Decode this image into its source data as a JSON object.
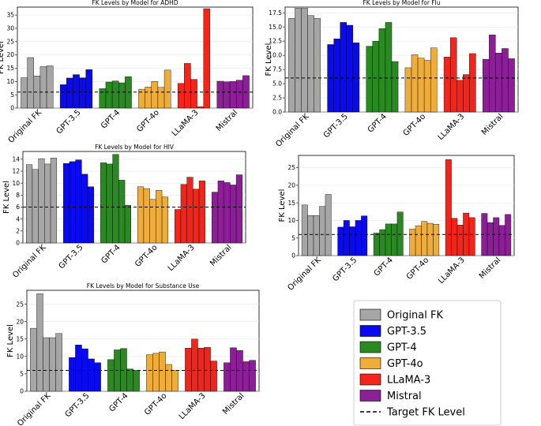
{
  "figure": {
    "target_label": "Target FK Level",
    "target_value": 6
  },
  "legend": {
    "entries": [
      {
        "name": "Original FK",
        "color": "#a6a6a6"
      },
      {
        "name": "GPT-3.5",
        "color": "#0a0aee"
      },
      {
        "name": "GPT-4",
        "color": "#2a8a22"
      },
      {
        "name": "GPT-4o",
        "color": "#eeac3b"
      },
      {
        "name": "LLaMA-3",
        "color": "#f3251b"
      },
      {
        "name": "Mistral",
        "color": "#8b1f95"
      },
      {
        "name": "Target FK Level",
        "style": "dashed-line"
      }
    ]
  },
  "chart_data": [
    {
      "type": "bar",
      "title": "FK Levels by Model for ADHD",
      "xlabel": "",
      "ylabel": "FK Level",
      "ylim": [
        0,
        38
      ],
      "yticks": [
        0,
        5,
        10,
        15,
        20,
        25,
        30,
        35
      ],
      "target": 6,
      "categories": [
        "Original FK",
        "GPT-3.5",
        "GPT-4",
        "GPT-4o",
        "LLaMA-3",
        "Mistral"
      ],
      "groups": [
        {
          "name": "Original FK",
          "color": "#a6a6a6",
          "values": [
            11.4,
            19.0,
            12.1,
            15.6,
            15.9
          ]
        },
        {
          "name": "GPT-3.5",
          "color": "#0a0aee",
          "values": [
            8.8,
            11.3,
            12.6,
            11.4,
            14.5
          ]
        },
        {
          "name": "GPT-4",
          "color": "#2a8a22",
          "values": [
            7.3,
            9.8,
            10.2,
            9.5,
            11.8
          ]
        },
        {
          "name": "GPT-4o",
          "color": "#eeac3b",
          "values": [
            7.1,
            7.9,
            10.0,
            7.8,
            14.3
          ]
        },
        {
          "name": "LLaMA-3",
          "color": "#f3251b",
          "values": [
            9.3,
            16.8,
            10.8,
            0.5,
            37.4
          ]
        },
        {
          "name": "Mistral",
          "color": "#8b1f95",
          "values": [
            10.1,
            9.9,
            10.0,
            10.5,
            12.2
          ]
        }
      ]
    },
    {
      "type": "bar",
      "title": "FK Levels by Model for Flu",
      "xlabel": "",
      "ylabel": "FK Level",
      "ylim": [
        0,
        18.5
      ],
      "yticks": [
        0.0,
        2.5,
        5.0,
        7.5,
        10.0,
        12.5,
        15.0,
        17.5
      ],
      "target": 6,
      "categories": [
        "Original FK",
        "GPT-3.5",
        "GPT-4",
        "GPT-4o",
        "LLaMA-3",
        "Mistral"
      ],
      "groups": [
        {
          "name": "Original FK",
          "color": "#a6a6a6",
          "values": [
            16.5,
            18.3,
            18.3,
            17.0,
            16.5
          ]
        },
        {
          "name": "GPT-3.5",
          "color": "#0a0aee",
          "values": [
            11.9,
            12.9,
            15.8,
            15.3,
            12.2
          ]
        },
        {
          "name": "GPT-4",
          "color": "#2a8a22",
          "values": [
            11.6,
            12.5,
            14.7,
            15.8,
            8.9
          ]
        },
        {
          "name": "GPT-4o",
          "color": "#eeac3b",
          "values": [
            7.8,
            10.1,
            9.5,
            9.1,
            11.3
          ]
        },
        {
          "name": "LLaMA-3",
          "color": "#f3251b",
          "values": [
            9.7,
            13.1,
            5.6,
            6.6,
            10.3
          ]
        },
        {
          "name": "Mistral",
          "color": "#8b1f95",
          "values": [
            9.3,
            13.6,
            10.4,
            11.2,
            9.4
          ]
        }
      ]
    },
    {
      "type": "bar",
      "title": "FK Levels by Model for HIV",
      "xlabel": "",
      "ylabel": "FK Level",
      "ylim": [
        0,
        15.3
      ],
      "yticks": [
        0,
        2,
        4,
        6,
        8,
        10,
        12,
        14
      ],
      "target": 6,
      "categories": [
        "Original FK",
        "GPT-3.5",
        "GPT-4",
        "GPT-4o",
        "LLaMA-3",
        "Mistral"
      ],
      "groups": [
        {
          "name": "Original FK",
          "color": "#a6a6a6",
          "values": [
            13.1,
            12.3,
            14.1,
            13.2,
            14.2
          ]
        },
        {
          "name": "GPT-3.5",
          "color": "#0a0aee",
          "values": [
            13.3,
            13.6,
            13.9,
            11.5,
            9.4
          ]
        },
        {
          "name": "GPT-4",
          "color": "#2a8a22",
          "values": [
            13.4,
            13.2,
            14.8,
            10.5,
            6.3
          ]
        },
        {
          "name": "GPT-4o",
          "color": "#eeac3b",
          "values": [
            9.4,
            9.1,
            7.3,
            8.8,
            7.7
          ]
        },
        {
          "name": "LLaMA-3",
          "color": "#f3251b",
          "values": [
            5.6,
            9.8,
            11.0,
            9.0,
            10.4
          ]
        },
        {
          "name": "Mistral",
          "color": "#8b1f95",
          "values": [
            8.5,
            10.4,
            10.1,
            9.7,
            11.4
          ]
        }
      ]
    },
    {
      "type": "bar",
      "title": "",
      "xlabel": "",
      "ylabel": "FK Level",
      "ylim": [
        0,
        28.5
      ],
      "yticks": [
        0,
        5,
        10,
        15,
        20,
        25
      ],
      "target": 6,
      "categories": [
        "Original FK",
        "GPT-3.5",
        "GPT-4",
        "GPT-4o",
        "LLaMA-3",
        "Mistral"
      ],
      "groups": [
        {
          "name": "Original FK",
          "color": "#a6a6a6",
          "values": [
            14.4,
            11.4,
            11.4,
            14.0,
            17.4
          ]
        },
        {
          "name": "GPT-3.5",
          "color": "#0a0aee",
          "values": [
            8.1,
            10.0,
            8.2,
            10.0,
            11.3
          ]
        },
        {
          "name": "GPT-4",
          "color": "#2a8a22",
          "values": [
            6.4,
            7.4,
            9.0,
            9.0,
            12.4
          ]
        },
        {
          "name": "GPT-4o",
          "color": "#eeac3b",
          "values": [
            7.6,
            8.5,
            9.7,
            9.2,
            8.9
          ]
        },
        {
          "name": "LLaMA-3",
          "color": "#f3251b",
          "values": [
            27.3,
            10.6,
            8.7,
            12.1,
            10.8
          ]
        },
        {
          "name": "Mistral",
          "color": "#8b1f95",
          "values": [
            12.0,
            9.4,
            10.8,
            8.6,
            11.7
          ]
        }
      ]
    },
    {
      "type": "bar",
      "title": "FK Levels by Model for Substance Use",
      "xlabel": "",
      "ylabel": "FK Level",
      "ylim": [
        0,
        29
      ],
      "yticks": [
        0,
        5,
        10,
        15,
        20,
        25
      ],
      "target": 6,
      "categories": [
        "Original FK",
        "GPT-3.5",
        "GPT-4",
        "GPT-4o",
        "LLaMA-3",
        "Mistral"
      ],
      "groups": [
        {
          "name": "Original FK",
          "color": "#a6a6a6",
          "values": [
            18.1,
            28.0,
            15.4,
            15.4,
            16.6
          ]
        },
        {
          "name": "GPT-3.5",
          "color": "#0a0aee",
          "values": [
            9.7,
            13.3,
            12.2,
            9.3,
            8.2
          ]
        },
        {
          "name": "GPT-4",
          "color": "#2a8a22",
          "values": [
            9.1,
            11.9,
            12.3,
            6.4,
            6.0
          ]
        },
        {
          "name": "GPT-4o",
          "color": "#eeac3b",
          "values": [
            10.5,
            10.9,
            11.3,
            7.7,
            6.0
          ]
        },
        {
          "name": "LLaMA-3",
          "color": "#f3251b",
          "values": [
            12.4,
            15.0,
            12.4,
            12.6,
            8.7
          ]
        },
        {
          "name": "Mistral",
          "color": "#8b1f95",
          "values": [
            8.2,
            12.5,
            11.7,
            8.5,
            8.9
          ]
        }
      ]
    }
  ]
}
